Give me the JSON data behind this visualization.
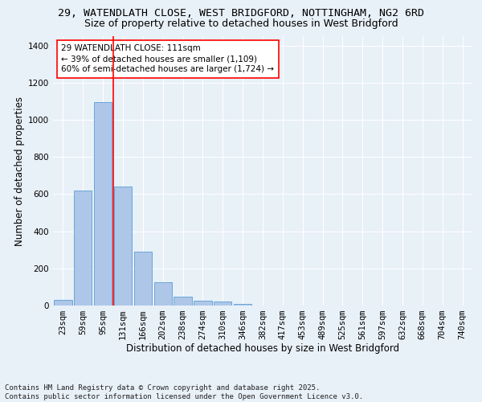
{
  "title_line1": "29, WATENDLATH CLOSE, WEST BRIDGFORD, NOTTINGHAM, NG2 6RD",
  "title_line2": "Size of property relative to detached houses in West Bridgford",
  "xlabel": "Distribution of detached houses by size in West Bridgford",
  "ylabel": "Number of detached properties",
  "categories": [
    "23sqm",
    "59sqm",
    "95sqm",
    "131sqm",
    "166sqm",
    "202sqm",
    "238sqm",
    "274sqm",
    "310sqm",
    "346sqm",
    "382sqm",
    "417sqm",
    "453sqm",
    "489sqm",
    "525sqm",
    "561sqm",
    "597sqm",
    "632sqm",
    "668sqm",
    "704sqm",
    "740sqm"
  ],
  "values": [
    30,
    620,
    1095,
    640,
    290,
    125,
    48,
    25,
    22,
    10,
    0,
    0,
    0,
    0,
    0,
    0,
    0,
    0,
    0,
    0,
    0
  ],
  "bar_color": "#aec6e8",
  "bar_edge_color": "#5a9fd4",
  "vline_x": 2.5,
  "vline_color": "red",
  "annotation_text": "29 WATENDLATH CLOSE: 111sqm\n← 39% of detached houses are smaller (1,109)\n60% of semi-detached houses are larger (1,724) →",
  "annotation_box_color": "white",
  "annotation_edge_color": "red",
  "ylim": [
    0,
    1450
  ],
  "yticks": [
    0,
    200,
    400,
    600,
    800,
    1000,
    1200,
    1400
  ],
  "background_color": "#e8f0f8",
  "grid_color": "white",
  "footer_line1": "Contains HM Land Registry data © Crown copyright and database right 2025.",
  "footer_line2": "Contains public sector information licensed under the Open Government Licence v3.0.",
  "title_fontsize": 9.5,
  "subtitle_fontsize": 9,
  "axis_label_fontsize": 8.5,
  "tick_fontsize": 7.5,
  "annotation_fontsize": 7.5,
  "footer_fontsize": 6.5
}
